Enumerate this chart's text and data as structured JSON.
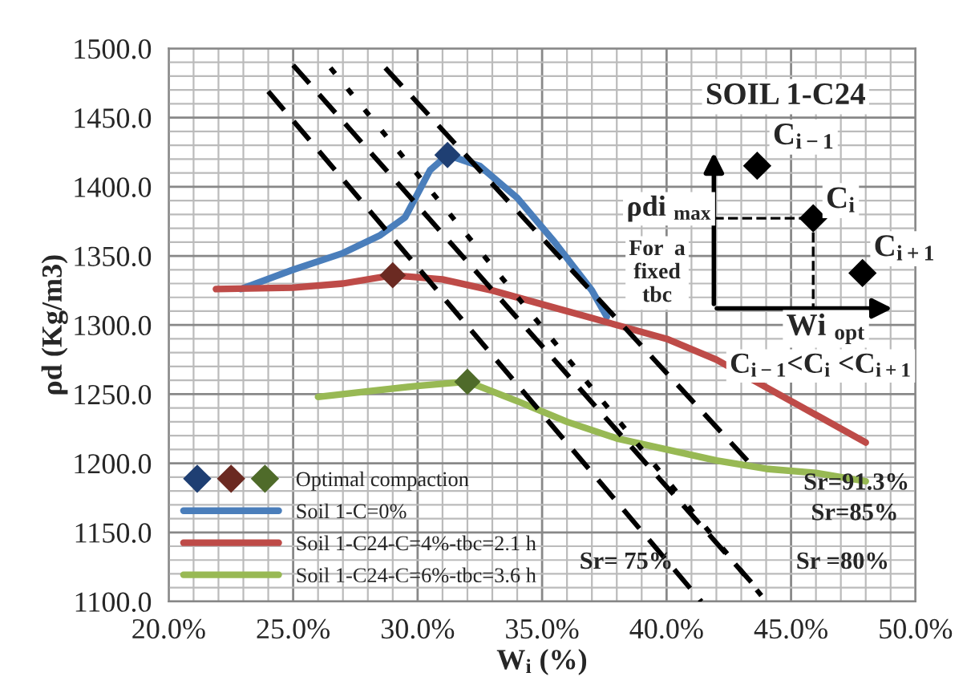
{
  "chart_data": {
    "type": "line",
    "xlabel": "W$_{i}$ (%)",
    "ylabel": "ρd (Kg/m3)",
    "xlim": [
      20,
      50
    ],
    "ylim": [
      1100,
      1500
    ],
    "xticks": [
      {
        "value": 20,
        "label": "20.0%"
      },
      {
        "value": 25,
        "label": "25.0%"
      },
      {
        "value": 30,
        "label": "30.0%"
      },
      {
        "value": 35,
        "label": "35.0%"
      },
      {
        "value": 40,
        "label": "40.0%"
      },
      {
        "value": 45,
        "label": "45.0%"
      },
      {
        "value": 50,
        "label": "50.0%"
      }
    ],
    "yticks": [
      {
        "value": 1100,
        "label": "1100.0"
      },
      {
        "value": 1150,
        "label": "1150.0"
      },
      {
        "value": 1200,
        "label": "1200.0"
      },
      {
        "value": 1250,
        "label": "1250.0"
      },
      {
        "value": 1300,
        "label": "1300.0"
      },
      {
        "value": 1350,
        "label": "1350.0"
      },
      {
        "value": 1400,
        "label": "1400.0"
      },
      {
        "value": 1450,
        "label": "1450.0"
      },
      {
        "value": 1500,
        "label": "1500.0"
      }
    ],
    "grid": true,
    "legend": "bottom left",
    "series": [
      {
        "name": "Optimal compaction",
        "type": "scatter",
        "marker": "diamond",
        "colors": [
          "#1f3f73",
          "#6b2a22",
          "#4f6b2a"
        ],
        "x": [
          31.2,
          29.0,
          32.0
        ],
        "values": [
          1423,
          1336,
          1259
        ]
      },
      {
        "name": "Soil 1-C=0%",
        "color": "#4a7ebb",
        "x": [
          22.9,
          25,
          27,
          28.5,
          29.5,
          30,
          30.5,
          31.2,
          32.5,
          34,
          35.5,
          37,
          37.6
        ],
        "values": [
          1326,
          1340,
          1352,
          1365,
          1378,
          1395,
          1412,
          1423,
          1415,
          1392,
          1360,
          1325,
          1306
        ]
      },
      {
        "name": "Soil 1-C24-C=4%-tbc=2.1 h",
        "color": "#be4b48",
        "x": [
          21.9,
          25,
          27,
          29,
          31,
          33,
          35,
          37,
          40,
          42,
          44,
          46,
          48
        ],
        "values": [
          1326,
          1327,
          1330,
          1336,
          1333,
          1325,
          1315,
          1305,
          1290,
          1275,
          1255,
          1235,
          1215
        ]
      },
      {
        "name": "Soil 1-C24-C=6%-tbc=3.6 h",
        "color": "#98b954",
        "x": [
          26,
          28,
          30,
          32,
          34,
          36,
          38,
          40,
          42,
          44,
          46,
          48
        ],
        "values": [
          1248,
          1252,
          1256,
          1259,
          1245,
          1230,
          1218,
          1210,
          1202,
          1196,
          1193,
          1187
        ]
      },
      {
        "line_style": "dashed",
        "color": "#000000",
        "x": [
          24.0,
          41.4
        ],
        "values": [
          1469,
          1100
        ]
      },
      {
        "line_style": "dashed",
        "color": "#000000",
        "x": [
          25.0,
          43.4
        ],
        "values": [
          1488,
          1114
        ]
      },
      {
        "line_style": "dotted",
        "color": "#000000",
        "x": [
          26.5,
          44.0
        ],
        "values": [
          1486,
          1100
        ]
      },
      {
        "line_style": "dashed",
        "color": "#000000",
        "x": [
          28.7,
          43.6
        ],
        "values": [
          1486,
          1195
        ]
      }
    ],
    "annotations": [
      "Sr= 75%",
      "Sr =80%",
      "Sr=85%",
      "Sr=91.3%",
      "SOIL 1-C24",
      "C$_{i−1}$",
      "C$_{i}$",
      "C$_{i+1}$",
      "ρdi $_{max}$",
      "For  a\nfixed\ntbc",
      "Wi $_{opt}$",
      "C$_{i−1}$<C$_{i}$ <C$_{i+1}$"
    ]
  }
}
